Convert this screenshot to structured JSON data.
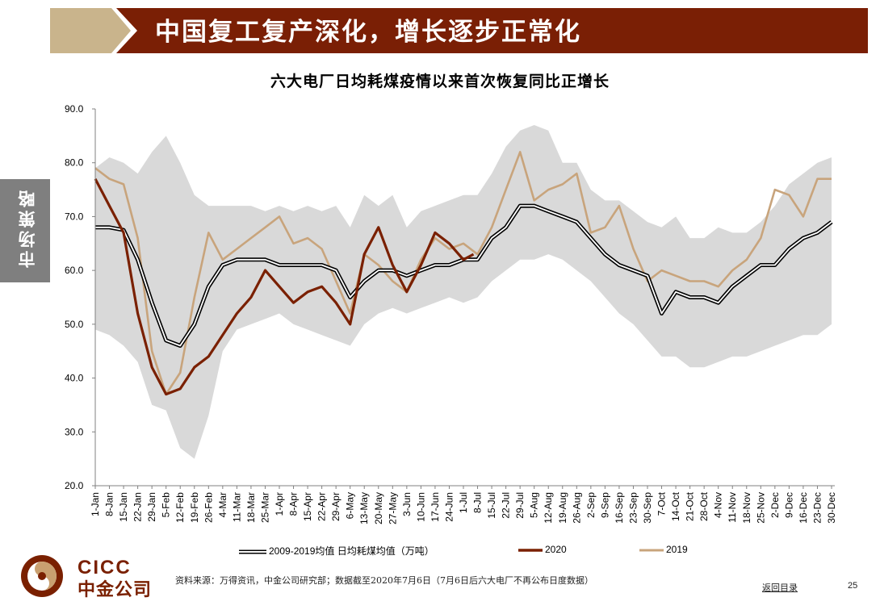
{
  "header": {
    "title": "中国复工复产深化，增长逐步正常化"
  },
  "side_tab": {
    "label": "市场策略"
  },
  "colors": {
    "banner": "#7a1f05",
    "banner_tan": "#c9b48c",
    "band": "#d9d9d9",
    "avg_line": "#000000",
    "line_2020": "#7a2000",
    "line_2019": "#c8a47c",
    "side_tab": "#7f7f7f",
    "logo": "#7a2000"
  },
  "chart_data": {
    "type": "line",
    "title": "六大电厂日均耗煤疫情以来首次恢复同比正增长",
    "ylim": [
      20,
      90
    ],
    "y_ticks": [
      "20.0",
      "30.0",
      "40.0",
      "50.0",
      "60.0",
      "70.0",
      "80.0",
      "90.0"
    ],
    "y_tick_values": [
      20,
      30,
      40,
      50,
      60,
      70,
      80,
      90
    ],
    "grid": false,
    "legend_position": "bottom",
    "x_ticks": [
      "1-Jan",
      "8-Jan",
      "15-Jan",
      "22-Jan",
      "29-Jan",
      "5-Feb",
      "12-Feb",
      "19-Feb",
      "26-Feb",
      "4-Mar",
      "11-Mar",
      "18-Mar",
      "25-Mar",
      "1-Apr",
      "8-Apr",
      "15-Apr",
      "22-Apr",
      "29-Apr",
      "6-May",
      "13-May",
      "20-May",
      "27-May",
      "3-Jun",
      "10-Jun",
      "17-Jun",
      "24-Jun",
      "1-Jul",
      "8-Jul",
      "15-Jul",
      "22-Jul",
      "29-Jul",
      "5-Aug",
      "12-Aug",
      "19-Aug",
      "26-Aug",
      "2-Sep",
      "9-Sep",
      "16-Sep",
      "23-Sep",
      "30-Sep",
      "7-Oct",
      "14-Oct",
      "21-Oct",
      "28-Oct",
      "4-Nov",
      "11-Nov",
      "18-Nov",
      "25-Nov",
      "2-Dec",
      "9-Dec",
      "16-Dec",
      "23-Dec",
      "30-Dec"
    ],
    "band_x": [
      "1-Jan",
      "8-Jan",
      "15-Jan",
      "22-Jan",
      "29-Jan",
      "5-Feb",
      "12-Feb",
      "19-Feb",
      "26-Feb",
      "4-Mar",
      "11-Mar",
      "18-Mar",
      "25-Mar",
      "1-Apr",
      "8-Apr",
      "15-Apr",
      "22-Apr",
      "29-Apr",
      "6-May",
      "13-May",
      "20-May",
      "27-May",
      "3-Jun",
      "10-Jun",
      "17-Jun",
      "24-Jun",
      "1-Jul",
      "8-Jul",
      "15-Jul",
      "22-Jul",
      "29-Jul",
      "5-Aug",
      "12-Aug",
      "19-Aug",
      "26-Aug",
      "2-Sep",
      "9-Sep",
      "16-Sep",
      "23-Sep",
      "30-Sep",
      "7-Oct",
      "14-Oct",
      "21-Oct",
      "28-Oct",
      "4-Nov",
      "11-Nov",
      "18-Nov",
      "25-Nov",
      "2-Dec",
      "9-Dec",
      "16-Dec",
      "23-Dec",
      "30-Dec"
    ],
    "series": [
      {
        "name": "2009-2019均值 日均耗煤均值（万吨）",
        "kind": "range_band_with_mean",
        "x": [
          "1-Jan",
          "8-Jan",
          "15-Jan",
          "22-Jan",
          "29-Jan",
          "5-Feb",
          "12-Feb",
          "19-Feb",
          "26-Feb",
          "4-Mar",
          "11-Mar",
          "18-Mar",
          "25-Mar",
          "1-Apr",
          "8-Apr",
          "15-Apr",
          "22-Apr",
          "29-Apr",
          "6-May",
          "13-May",
          "20-May",
          "27-May",
          "3-Jun",
          "10-Jun",
          "17-Jun",
          "24-Jun",
          "1-Jul",
          "8-Jul",
          "15-Jul",
          "22-Jul",
          "29-Jul",
          "5-Aug",
          "12-Aug",
          "19-Aug",
          "26-Aug",
          "2-Sep",
          "9-Sep",
          "16-Sep",
          "23-Sep",
          "30-Sep",
          "7-Oct",
          "14-Oct",
          "21-Oct",
          "28-Oct",
          "4-Nov",
          "11-Nov",
          "18-Nov",
          "25-Nov",
          "2-Dec",
          "9-Dec",
          "16-Dec",
          "23-Dec",
          "30-Dec"
        ],
        "values": [
          68,
          68,
          67.5,
          62,
          54,
          47,
          46,
          50,
          57,
          61,
          62,
          62,
          62,
          61,
          61,
          61,
          61,
          60,
          55,
          58,
          60,
          60,
          59,
          60,
          61,
          61,
          62,
          62,
          66,
          68,
          72,
          72,
          71,
          70,
          69,
          66,
          63,
          61,
          60,
          59,
          52,
          56,
          55,
          55,
          54,
          57,
          59,
          61,
          61,
          64,
          66,
          67,
          69
        ],
        "band_high": [
          79,
          81,
          80,
          78,
          82,
          85,
          80,
          74,
          72,
          72,
          72,
          72,
          71,
          72,
          71,
          72,
          71,
          72,
          68,
          74,
          72,
          74,
          68,
          71,
          72,
          73,
          74,
          74,
          78,
          83,
          86,
          87,
          86,
          80,
          80,
          75,
          73,
          73,
          71,
          69,
          68,
          70,
          66,
          66,
          68,
          67,
          67,
          69,
          72,
          76,
          78,
          80,
          81
        ],
        "band_low": [
          49,
          48,
          46,
          43,
          35,
          34,
          27,
          25,
          33,
          45,
          49,
          50,
          51,
          52,
          50,
          49,
          48,
          47,
          46,
          50,
          52,
          53,
          52,
          53,
          54,
          55,
          54,
          55,
          58,
          60,
          62,
          62,
          63,
          62,
          60,
          58,
          55,
          52,
          50,
          47,
          44,
          44,
          42,
          42,
          43,
          44,
          44,
          45,
          46,
          47,
          48,
          48,
          50
        ]
      },
      {
        "name": "2020",
        "x": [
          "1-Jan",
          "8-Jan",
          "15-Jan",
          "22-Jan",
          "29-Jan",
          "5-Feb",
          "12-Feb",
          "19-Feb",
          "26-Feb",
          "4-Mar",
          "11-Mar",
          "18-Mar",
          "25-Mar",
          "1-Apr",
          "8-Apr",
          "15-Apr",
          "22-Apr",
          "29-Apr",
          "6-May",
          "13-May",
          "20-May",
          "27-May",
          "3-Jun",
          "10-Jun",
          "17-Jun",
          "24-Jun",
          "1-Jul",
          "6-Jul"
        ],
        "values": [
          77,
          72,
          67,
          52,
          42,
          37,
          38,
          42,
          44,
          48,
          52,
          55,
          60,
          57,
          54,
          56,
          57,
          54,
          50,
          63,
          68,
          61,
          56,
          61,
          67,
          65,
          62,
          63
        ]
      },
      {
        "name": "2019",
        "x": [
          "1-Jan",
          "8-Jan",
          "15-Jan",
          "22-Jan",
          "29-Jan",
          "5-Feb",
          "12-Feb",
          "19-Feb",
          "26-Feb",
          "4-Mar",
          "11-Mar",
          "18-Mar",
          "25-Mar",
          "1-Apr",
          "8-Apr",
          "15-Apr",
          "22-Apr",
          "29-Apr",
          "6-May",
          "13-May",
          "20-May",
          "27-May",
          "3-Jun",
          "10-Jun",
          "17-Jun",
          "24-Jun",
          "1-Jul",
          "8-Jul",
          "15-Jul",
          "22-Jul",
          "29-Jul",
          "5-Aug",
          "12-Aug",
          "19-Aug",
          "26-Aug",
          "2-Sep",
          "9-Sep",
          "16-Sep",
          "23-Sep",
          "30-Sep",
          "7-Oct",
          "14-Oct",
          "21-Oct",
          "28-Oct",
          "4-Nov",
          "11-Nov",
          "18-Nov",
          "25-Nov",
          "2-Dec",
          "9-Dec",
          "16-Dec",
          "23-Dec",
          "30-Dec"
        ],
        "values": [
          79,
          77,
          76,
          66,
          45,
          37,
          41,
          55,
          67,
          62,
          64,
          66,
          68,
          70,
          65,
          66,
          64,
          58,
          52,
          63,
          61,
          58,
          56,
          62,
          66,
          64,
          65,
          63,
          68,
          75,
          82,
          73,
          75,
          76,
          78,
          67,
          68,
          72,
          64,
          58,
          60,
          59,
          58,
          58,
          57,
          60,
          62,
          66,
          75,
          74,
          70,
          77,
          77
        ]
      }
    ]
  },
  "legend": {
    "avg": "2009-2019均值 日均耗煤均值（万吨）",
    "y2020": "2020",
    "y2019": "2019"
  },
  "logo": {
    "en": "CICC",
    "cn": "中金公司"
  },
  "footer": {
    "source": "资料来源：万得资讯，中金公司研究部；数据截至2020年7月6日（7月6日后六大电厂不再公布日度数据）",
    "back_link": "返回目录",
    "page_number": "25"
  }
}
